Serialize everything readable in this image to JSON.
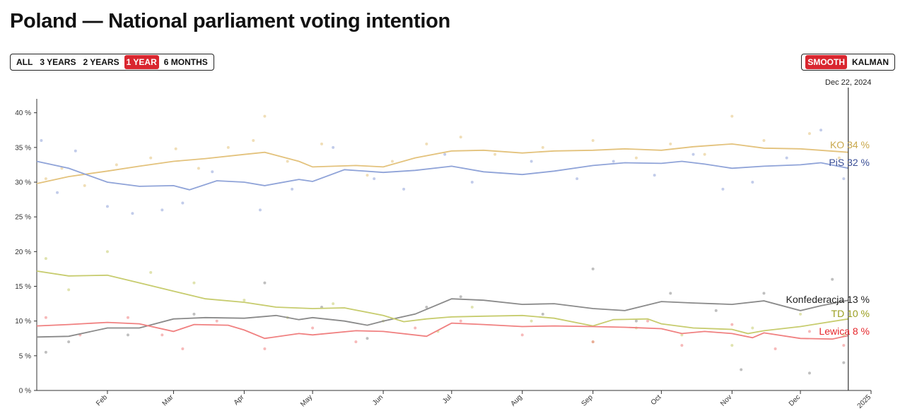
{
  "title": "Poland — National parliament voting intention",
  "range_buttons": [
    {
      "label": "ALL",
      "active": false
    },
    {
      "label": "3 YEARS",
      "active": false
    },
    {
      "label": "2 YEARS",
      "active": false
    },
    {
      "label": "1 YEAR",
      "active": true
    },
    {
      "label": "6 MONTHS",
      "active": false
    }
  ],
  "method_buttons": [
    {
      "label": "SMOOTH",
      "active": true
    },
    {
      "label": "KALMAN",
      "active": false
    }
  ],
  "colors": {
    "accent": "#d9262f"
  },
  "chart_data": {
    "type": "line",
    "cursor_date_label": "Dec 22, 2024",
    "cursor_date": "2024-12-22",
    "x_range": [
      "2024-01-01",
      "2025-01-01"
    ],
    "ylim": [
      0,
      42
    ],
    "y_ticks": [
      {
        "value": 0,
        "label": "0 %"
      },
      {
        "value": 5,
        "label": "5 %"
      },
      {
        "value": 10,
        "label": "10 %"
      },
      {
        "value": 15,
        "label": "15 %"
      },
      {
        "value": 20,
        "label": "20 %"
      },
      {
        "value": 25,
        "label": "25 %"
      },
      {
        "value": 30,
        "label": "30 %"
      },
      {
        "value": 35,
        "label": "35 %"
      },
      {
        "value": 40,
        "label": "40 %"
      }
    ],
    "x_ticks": [
      {
        "date": "2024-02-01",
        "label": "Feb"
      },
      {
        "date": "2024-03-01",
        "label": "Mar"
      },
      {
        "date": "2024-04-01",
        "label": "Apr"
      },
      {
        "date": "2024-05-01",
        "label": "May"
      },
      {
        "date": "2024-06-01",
        "label": "Jun"
      },
      {
        "date": "2024-07-01",
        "label": "Jul"
      },
      {
        "date": "2024-08-01",
        "label": "Aug"
      },
      {
        "date": "2024-09-01",
        "label": "Sep"
      },
      {
        "date": "2024-10-01",
        "label": "Oct"
      },
      {
        "date": "2024-11-01",
        "label": "Nov"
      },
      {
        "date": "2024-12-01",
        "label": "Dec"
      },
      {
        "date": "2025-01-01",
        "label": "2025"
      }
    ],
    "grid": false,
    "series": [
      {
        "name": "KO",
        "label": "KO",
        "value_label": "34 %",
        "color": "#c9a84c",
        "line_color": "#e3c27c",
        "points": [
          [
            "2024-01-01",
            29.8
          ],
          [
            "2024-01-15",
            30.8
          ],
          [
            "2024-02-01",
            31.6
          ],
          [
            "2024-02-15",
            32.3
          ],
          [
            "2024-03-01",
            33.0
          ],
          [
            "2024-03-15",
            33.4
          ],
          [
            "2024-04-01",
            34.0
          ],
          [
            "2024-04-10",
            34.3
          ],
          [
            "2024-04-25",
            33.0
          ],
          [
            "2024-05-01",
            32.2
          ],
          [
            "2024-05-20",
            32.4
          ],
          [
            "2024-06-01",
            32.2
          ],
          [
            "2024-06-15",
            33.5
          ],
          [
            "2024-07-01",
            34.5
          ],
          [
            "2024-07-15",
            34.6
          ],
          [
            "2024-08-01",
            34.2
          ],
          [
            "2024-08-15",
            34.5
          ],
          [
            "2024-09-01",
            34.6
          ],
          [
            "2024-09-15",
            34.8
          ],
          [
            "2024-10-01",
            34.6
          ],
          [
            "2024-10-15",
            35.1
          ],
          [
            "2024-11-01",
            35.5
          ],
          [
            "2024-11-15",
            34.9
          ],
          [
            "2024-12-01",
            34.8
          ],
          [
            "2024-12-22",
            34.3
          ]
        ],
        "polls": [
          [
            "2024-01-05",
            30.5
          ],
          [
            "2024-01-12",
            32.0
          ],
          [
            "2024-01-22",
            29.5
          ],
          [
            "2024-02-05",
            32.5
          ],
          [
            "2024-02-20",
            33.5
          ],
          [
            "2024-03-02",
            34.8
          ],
          [
            "2024-03-12",
            32.0
          ],
          [
            "2024-03-25",
            35.0
          ],
          [
            "2024-04-05",
            36.0
          ],
          [
            "2024-04-10",
            39.5
          ],
          [
            "2024-04-20",
            33.0
          ],
          [
            "2024-05-05",
            35.5
          ],
          [
            "2024-05-25",
            31.0
          ],
          [
            "2024-06-05",
            33.0
          ],
          [
            "2024-06-20",
            35.5
          ],
          [
            "2024-07-05",
            36.5
          ],
          [
            "2024-07-20",
            34.0
          ],
          [
            "2024-08-10",
            35.0
          ],
          [
            "2024-09-01",
            36.0
          ],
          [
            "2024-09-20",
            33.5
          ],
          [
            "2024-10-05",
            35.5
          ],
          [
            "2024-10-20",
            34.0
          ],
          [
            "2024-11-01",
            39.5
          ],
          [
            "2024-11-15",
            36.0
          ],
          [
            "2024-12-05",
            37.0
          ],
          [
            "2024-12-18",
            33.5
          ]
        ]
      },
      {
        "name": "PiS",
        "label": "PiS",
        "value_label": "32 %",
        "color": "#3a4e96",
        "line_color": "#8fa3d8",
        "points": [
          [
            "2024-01-01",
            33.0
          ],
          [
            "2024-01-15",
            32.0
          ],
          [
            "2024-02-01",
            30.0
          ],
          [
            "2024-02-15",
            29.4
          ],
          [
            "2024-03-01",
            29.5
          ],
          [
            "2024-03-08",
            28.9
          ],
          [
            "2024-03-20",
            30.2
          ],
          [
            "2024-04-01",
            30.0
          ],
          [
            "2024-04-10",
            29.5
          ],
          [
            "2024-04-25",
            30.4
          ],
          [
            "2024-05-01",
            30.1
          ],
          [
            "2024-05-15",
            31.8
          ],
          [
            "2024-06-01",
            31.4
          ],
          [
            "2024-06-15",
            31.7
          ],
          [
            "2024-07-01",
            32.3
          ],
          [
            "2024-07-15",
            31.5
          ],
          [
            "2024-08-01",
            31.1
          ],
          [
            "2024-08-15",
            31.6
          ],
          [
            "2024-09-01",
            32.4
          ],
          [
            "2024-09-15",
            32.8
          ],
          [
            "2024-10-01",
            32.7
          ],
          [
            "2024-10-10",
            33.0
          ],
          [
            "2024-10-20",
            32.6
          ],
          [
            "2024-11-01",
            32.0
          ],
          [
            "2024-11-15",
            32.3
          ],
          [
            "2024-12-01",
            32.5
          ],
          [
            "2024-12-10",
            32.8
          ],
          [
            "2024-12-22",
            32.0
          ]
        ],
        "polls": [
          [
            "2024-01-03",
            36.0
          ],
          [
            "2024-01-10",
            28.5
          ],
          [
            "2024-01-18",
            34.5
          ],
          [
            "2024-02-01",
            26.5
          ],
          [
            "2024-02-12",
            25.5
          ],
          [
            "2024-02-25",
            26.0
          ],
          [
            "2024-03-05",
            27.0
          ],
          [
            "2024-03-18",
            31.5
          ],
          [
            "2024-04-08",
            26.0
          ],
          [
            "2024-04-22",
            29.0
          ],
          [
            "2024-05-10",
            35.0
          ],
          [
            "2024-05-28",
            30.5
          ],
          [
            "2024-06-10",
            29.0
          ],
          [
            "2024-06-28",
            34.0
          ],
          [
            "2024-07-10",
            30.0
          ],
          [
            "2024-08-05",
            33.0
          ],
          [
            "2024-08-25",
            30.5
          ],
          [
            "2024-09-10",
            33.0
          ],
          [
            "2024-09-28",
            31.0
          ],
          [
            "2024-10-15",
            34.0
          ],
          [
            "2024-10-28",
            29.0
          ],
          [
            "2024-11-10",
            30.0
          ],
          [
            "2024-11-25",
            33.5
          ],
          [
            "2024-12-10",
            37.5
          ],
          [
            "2024-12-20",
            30.5
          ]
        ]
      },
      {
        "name": "Konfederacja",
        "label": "Konfederacja",
        "value_label": "13 %",
        "color": "#222222",
        "line_color": "#8a8a8a",
        "points": [
          [
            "2024-01-01",
            7.7
          ],
          [
            "2024-01-15",
            7.8
          ],
          [
            "2024-02-01",
            9.0
          ],
          [
            "2024-02-15",
            9.0
          ],
          [
            "2024-03-01",
            10.3
          ],
          [
            "2024-03-15",
            10.5
          ],
          [
            "2024-04-01",
            10.4
          ],
          [
            "2024-04-15",
            10.8
          ],
          [
            "2024-04-25",
            10.2
          ],
          [
            "2024-05-01",
            10.5
          ],
          [
            "2024-05-15",
            10.0
          ],
          [
            "2024-05-25",
            9.4
          ],
          [
            "2024-06-01",
            10.0
          ],
          [
            "2024-06-15",
            11.0
          ],
          [
            "2024-07-01",
            13.2
          ],
          [
            "2024-07-15",
            13.0
          ],
          [
            "2024-08-01",
            12.4
          ],
          [
            "2024-08-15",
            12.5
          ],
          [
            "2024-09-01",
            11.8
          ],
          [
            "2024-09-15",
            11.5
          ],
          [
            "2024-10-01",
            12.8
          ],
          [
            "2024-10-15",
            12.6
          ],
          [
            "2024-11-01",
            12.4
          ],
          [
            "2024-11-15",
            12.9
          ],
          [
            "2024-12-01",
            11.5
          ],
          [
            "2024-12-10",
            12.2
          ],
          [
            "2024-12-22",
            13.0
          ]
        ],
        "polls": [
          [
            "2024-01-05",
            5.5
          ],
          [
            "2024-01-15",
            7.0
          ],
          [
            "2024-02-10",
            8.0
          ],
          [
            "2024-03-10",
            11.0
          ],
          [
            "2024-04-10",
            15.5
          ],
          [
            "2024-05-05",
            12.0
          ],
          [
            "2024-05-25",
            7.5
          ],
          [
            "2024-06-20",
            12.0
          ],
          [
            "2024-07-05",
            13.5
          ],
          [
            "2024-08-10",
            11.0
          ],
          [
            "2024-09-01",
            17.5
          ],
          [
            "2024-09-20",
            10.0
          ],
          [
            "2024-10-05",
            14.0
          ],
          [
            "2024-10-25",
            11.5
          ],
          [
            "2024-11-05",
            3.0
          ],
          [
            "2024-11-15",
            14.0
          ],
          [
            "2024-12-05",
            2.5
          ],
          [
            "2024-12-15",
            16.0
          ],
          [
            "2024-12-20",
            4.0
          ]
        ]
      },
      {
        "name": "TD",
        "label": "TD",
        "value_label": "10 %",
        "color": "#9a9e1e",
        "line_color": "#c7cc6e",
        "points": [
          [
            "2024-01-01",
            17.2
          ],
          [
            "2024-01-15",
            16.5
          ],
          [
            "2024-02-01",
            16.6
          ],
          [
            "2024-02-15",
            15.5
          ],
          [
            "2024-03-01",
            14.3
          ],
          [
            "2024-03-15",
            13.2
          ],
          [
            "2024-04-01",
            12.7
          ],
          [
            "2024-04-15",
            12.0
          ],
          [
            "2024-05-01",
            11.8
          ],
          [
            "2024-05-15",
            11.9
          ],
          [
            "2024-06-01",
            10.8
          ],
          [
            "2024-06-10",
            9.9
          ],
          [
            "2024-06-20",
            10.3
          ],
          [
            "2024-07-01",
            10.6
          ],
          [
            "2024-07-15",
            10.7
          ],
          [
            "2024-08-01",
            10.8
          ],
          [
            "2024-08-15",
            10.4
          ],
          [
            "2024-09-01",
            9.3
          ],
          [
            "2024-09-10",
            10.2
          ],
          [
            "2024-09-25",
            10.3
          ],
          [
            "2024-10-01",
            9.6
          ],
          [
            "2024-10-15",
            9.0
          ],
          [
            "2024-11-01",
            8.8
          ],
          [
            "2024-11-08",
            8.2
          ],
          [
            "2024-11-15",
            8.6
          ],
          [
            "2024-12-01",
            9.2
          ],
          [
            "2024-12-22",
            10.3
          ]
        ],
        "polls": [
          [
            "2024-01-05",
            19.0
          ],
          [
            "2024-01-15",
            14.5
          ],
          [
            "2024-02-01",
            20.0
          ],
          [
            "2024-02-20",
            17.0
          ],
          [
            "2024-03-10",
            15.5
          ],
          [
            "2024-04-01",
            13.0
          ],
          [
            "2024-04-20",
            10.5
          ],
          [
            "2024-05-10",
            12.5
          ],
          [
            "2024-06-01",
            10.0
          ],
          [
            "2024-06-25",
            8.5
          ],
          [
            "2024-07-10",
            12.0
          ],
          [
            "2024-08-05",
            10.0
          ],
          [
            "2024-09-01",
            7.0
          ],
          [
            "2024-09-20",
            9.0
          ],
          [
            "2024-10-10",
            8.0
          ],
          [
            "2024-11-01",
            6.5
          ],
          [
            "2024-11-10",
            9.0
          ],
          [
            "2024-12-01",
            11.0
          ],
          [
            "2024-12-20",
            8.0
          ]
        ]
      },
      {
        "name": "Lewica",
        "label": "Lewica",
        "value_label": "8 %",
        "color": "#e6262b",
        "line_color": "#f08080",
        "points": [
          [
            "2024-01-01",
            9.3
          ],
          [
            "2024-01-15",
            9.5
          ],
          [
            "2024-02-01",
            9.8
          ],
          [
            "2024-02-15",
            9.6
          ],
          [
            "2024-03-01",
            8.5
          ],
          [
            "2024-03-10",
            9.5
          ],
          [
            "2024-03-25",
            9.4
          ],
          [
            "2024-04-01",
            8.7
          ],
          [
            "2024-04-10",
            7.5
          ],
          [
            "2024-04-25",
            8.2
          ],
          [
            "2024-05-01",
            8.0
          ],
          [
            "2024-05-20",
            8.6
          ],
          [
            "2024-06-01",
            8.5
          ],
          [
            "2024-06-20",
            7.8
          ],
          [
            "2024-07-01",
            9.7
          ],
          [
            "2024-07-15",
            9.5
          ],
          [
            "2024-08-01",
            9.2
          ],
          [
            "2024-08-15",
            9.3
          ],
          [
            "2024-09-01",
            9.2
          ],
          [
            "2024-09-15",
            9.1
          ],
          [
            "2024-10-01",
            8.9
          ],
          [
            "2024-10-10",
            8.2
          ],
          [
            "2024-10-20",
            8.5
          ],
          [
            "2024-11-01",
            8.2
          ],
          [
            "2024-11-10",
            7.6
          ],
          [
            "2024-11-15",
            8.3
          ],
          [
            "2024-12-01",
            7.5
          ],
          [
            "2024-12-15",
            7.4
          ],
          [
            "2024-12-22",
            7.9
          ]
        ],
        "polls": [
          [
            "2024-01-05",
            10.5
          ],
          [
            "2024-01-20",
            8.0
          ],
          [
            "2024-02-10",
            10.5
          ],
          [
            "2024-02-25",
            8.0
          ],
          [
            "2024-03-05",
            6.0
          ],
          [
            "2024-03-20",
            10.0
          ],
          [
            "2024-04-10",
            6.0
          ],
          [
            "2024-05-01",
            9.0
          ],
          [
            "2024-05-20",
            7.0
          ],
          [
            "2024-06-15",
            9.0
          ],
          [
            "2024-07-05",
            10.0
          ],
          [
            "2024-08-01",
            8.0
          ],
          [
            "2024-09-01",
            7.0
          ],
          [
            "2024-09-25",
            10.0
          ],
          [
            "2024-10-10",
            6.5
          ],
          [
            "2024-11-01",
            9.5
          ],
          [
            "2024-11-20",
            6.0
          ],
          [
            "2024-12-05",
            8.5
          ],
          [
            "2024-12-20",
            6.5
          ]
        ]
      }
    ]
  }
}
